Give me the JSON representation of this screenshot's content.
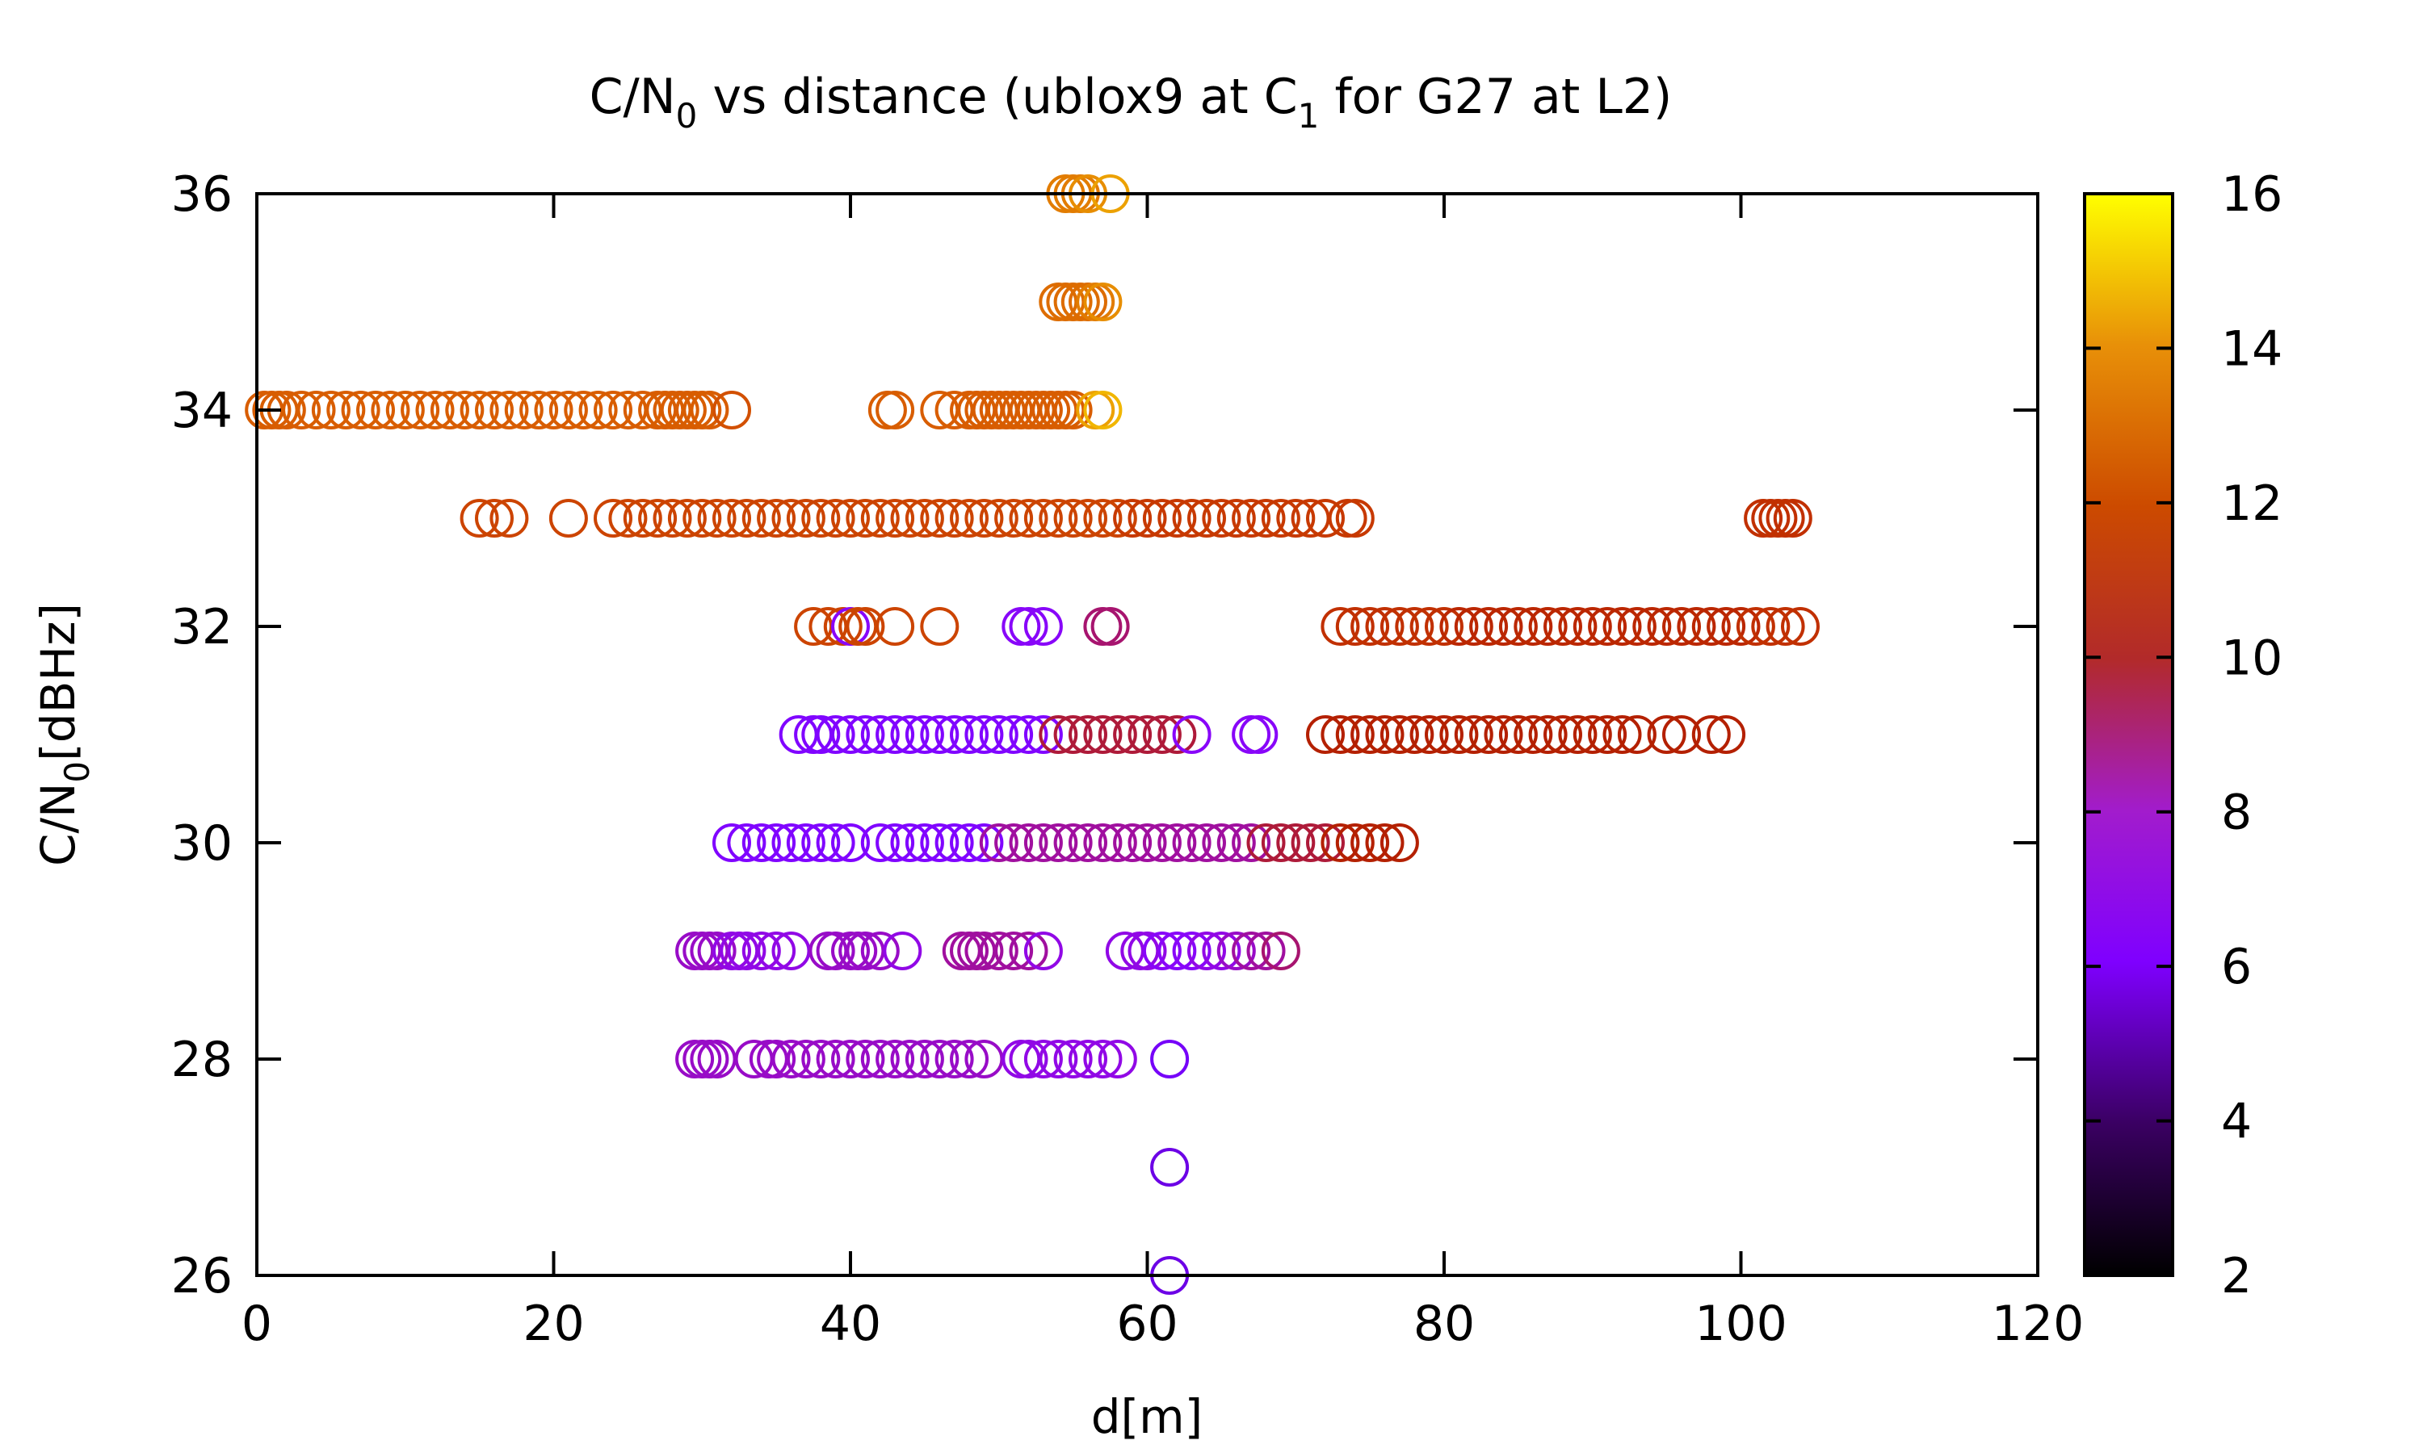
{
  "chart_data": {
    "type": "scatter",
    "title": {
      "pre": "C/N",
      "sub1": "0",
      "mid": " vs distance (ublox9 at C",
      "sub2": "1",
      "post": " for G27 at L2)"
    },
    "xlabel": "d[m]",
    "ylabel": {
      "pre": "C/N",
      "sub": "0",
      "post": "[dBHz]"
    },
    "xlim": [
      0,
      120
    ],
    "ylim": [
      26,
      36
    ],
    "xticks": [
      "0",
      "20",
      "40",
      "60",
      "80",
      "100",
      "120"
    ],
    "yticks": [
      "26",
      "28",
      "30",
      "32",
      "34",
      "36"
    ],
    "colorbar": {
      "range": [
        2,
        16
      ],
      "ticks": [
        "2",
        "4",
        "6",
        "8",
        "10",
        "12",
        "14",
        "16"
      ],
      "palette": "gnuplot (black-purple-red-orange-yellow)"
    },
    "marker": "open circle",
    "grid": false,
    "points": [
      {
        "y": 36,
        "x": [
          54.5,
          55,
          55.5,
          56,
          57.5
        ],
        "c": [
          13,
          13,
          13,
          13.5,
          14
        ]
      },
      {
        "y": 35,
        "x": [
          54,
          54.5,
          55,
          55.5,
          56,
          56.5,
          57
        ],
        "c": [
          12.5,
          12.5,
          12.5,
          12.5,
          12.5,
          13,
          13.5
        ]
      },
      {
        "y": 34,
        "x": [
          0.5,
          1,
          1.5,
          2,
          3,
          4,
          5,
          6,
          7,
          8,
          9,
          10,
          11,
          12,
          13,
          14,
          15,
          16,
          17,
          18,
          19,
          20,
          21,
          22,
          23,
          24,
          25,
          26,
          27,
          27.5,
          28,
          28.5,
          29,
          29.5,
          30,
          30.5,
          32,
          42.5,
          43,
          46,
          47,
          48,
          48.5,
          49,
          49.5,
          50,
          50.5,
          51,
          51.5,
          52,
          52.5,
          53,
          53.5,
          54,
          54.5,
          55,
          56.5,
          57
        ],
        "c": [
          12,
          12,
          12,
          12,
          12,
          12,
          12,
          12,
          12,
          12,
          12,
          12,
          12,
          12,
          12,
          12,
          12,
          12,
          12,
          12,
          12,
          12,
          12,
          12,
          12,
          12,
          12,
          12,
          12,
          12,
          12,
          12,
          12,
          12,
          12,
          12,
          11.5,
          12,
          12,
          12,
          12,
          12,
          12,
          12,
          12,
          12,
          12,
          12,
          12,
          12,
          12,
          12,
          12,
          12,
          12,
          12,
          14,
          14.5
        ]
      },
      {
        "y": 33,
        "x": [
          15,
          16,
          17,
          21,
          24,
          25,
          26,
          27,
          28,
          29,
          30,
          31,
          32,
          33,
          34,
          35,
          36,
          37,
          38,
          39,
          40,
          41,
          42,
          43,
          44,
          45,
          46,
          47,
          48,
          49,
          50,
          51,
          52,
          53,
          54,
          55,
          56,
          57,
          58,
          59,
          60,
          61,
          62,
          63,
          64,
          65,
          66,
          67,
          68,
          69,
          70,
          71,
          72,
          73.5,
          74,
          101.5,
          102,
          102.5,
          103,
          103.5
        ],
        "c": [
          11,
          11,
          11,
          11,
          11,
          11,
          11,
          11,
          11,
          11,
          11,
          11,
          11,
          11,
          11,
          11,
          11,
          11,
          11,
          11,
          11,
          11,
          11,
          11,
          11,
          11,
          11,
          11,
          11,
          11,
          11,
          11,
          11,
          11,
          11,
          11,
          11,
          11,
          11,
          10.5,
          10.5,
          10.5,
          10.5,
          10.5,
          10.5,
          10.5,
          10.5,
          10.5,
          10.5,
          10.5,
          10.5,
          10.5,
          10.5,
          10.5,
          10.5,
          10,
          10,
          10,
          10,
          10
        ]
      },
      {
        "y": 32,
        "x": [
          37.5,
          38.5,
          39.5,
          40,
          40.5,
          41,
          43,
          46,
          51.5,
          52,
          53,
          57,
          57.5,
          73,
          74,
          75,
          76,
          77,
          78,
          79,
          80,
          81,
          82,
          83,
          84,
          85,
          86,
          87,
          88,
          89,
          90,
          91,
          92,
          93,
          94,
          95,
          96,
          97,
          98,
          99,
          100,
          101,
          102,
          103,
          104
        ],
        "c": [
          11,
          11,
          11,
          6,
          11,
          11,
          11,
          11,
          6,
          6,
          6,
          8,
          8,
          10,
          10,
          10,
          10,
          10,
          10,
          10,
          10,
          9.5,
          9.5,
          9.5,
          9.5,
          9.5,
          9.5,
          9.5,
          9.5,
          9.5,
          9.5,
          9.5,
          9.5,
          9.5,
          9.5,
          9.5,
          9.5,
          9.5,
          9.5,
          9.5,
          9.5,
          10,
          10,
          10,
          10
        ]
      },
      {
        "y": 31,
        "x": [
          36.5,
          37.5,
          38,
          39,
          40,
          41,
          42,
          43,
          44,
          45,
          46,
          47,
          48,
          49,
          50,
          51,
          52,
          53,
          54,
          55,
          56,
          57,
          58,
          59,
          60,
          61,
          62,
          63,
          67,
          67.5,
          72,
          73,
          74,
          75,
          76,
          77,
          78,
          79,
          80,
          81,
          82,
          83,
          84,
          85,
          86,
          87,
          88,
          89,
          90,
          91,
          92,
          93,
          95,
          96,
          98,
          99
        ],
        "c": [
          5.5,
          5.5,
          5.5,
          5.5,
          5.5,
          5.5,
          5.5,
          5.5,
          5.5,
          5.5,
          5.5,
          5.5,
          5.5,
          5.5,
          5.5,
          5.5,
          5.5,
          5.5,
          8.5,
          8.5,
          8.5,
          8.5,
          8.5,
          8.5,
          8.5,
          8.5,
          8.5,
          6,
          6,
          6,
          9,
          9,
          9,
          9,
          9,
          9,
          9,
          9,
          9,
          9,
          9,
          9,
          9,
          9,
          9,
          9,
          9,
          9,
          9,
          9,
          9,
          9,
          9,
          9,
          9,
          9
        ]
      },
      {
        "y": 30,
        "x": [
          32,
          33,
          34,
          35,
          36,
          37,
          38,
          39,
          40,
          42,
          43,
          44,
          45,
          46,
          47,
          48,
          49,
          50,
          51,
          52,
          53,
          54,
          55,
          56,
          57,
          58,
          59,
          60,
          61,
          62,
          63,
          64,
          65,
          66,
          67,
          68,
          69,
          70,
          71,
          72,
          73,
          74,
          75,
          76,
          77
        ],
        "c": [
          5.5,
          5.5,
          5.5,
          5.5,
          5.5,
          5.5,
          5.5,
          5.5,
          5.5,
          5.5,
          5.5,
          5.5,
          5.5,
          5.5,
          5.5,
          5.5,
          5.5,
          7.5,
          7.5,
          7.5,
          7.5,
          7.5,
          7.5,
          7.5,
          7.5,
          7.5,
          7.5,
          7.5,
          7.5,
          7.5,
          7.5,
          7.5,
          7.5,
          7.5,
          7.5,
          8.5,
          8.5,
          8.5,
          8.5,
          8.5,
          9,
          9,
          9,
          9,
          9
        ]
      },
      {
        "y": 29,
        "x": [
          29.5,
          30,
          30.5,
          31,
          32,
          32.5,
          33,
          34,
          35,
          36,
          38.5,
          39,
          40,
          40.5,
          41,
          42,
          43.5,
          47.5,
          48,
          48.5,
          49,
          50,
          51,
          52,
          53,
          58.5,
          59.5,
          60,
          61,
          62,
          63,
          64,
          65,
          66,
          67,
          68,
          69
        ],
        "c": [
          7,
          7,
          7,
          7,
          6.5,
          6.5,
          6.5,
          6.5,
          6.5,
          6.5,
          7,
          7,
          7,
          7,
          7,
          7,
          6.5,
          7.5,
          7.5,
          7.5,
          7.5,
          7.5,
          7.5,
          7.5,
          6.5,
          6.5,
          6.5,
          6.5,
          6,
          6,
          6,
          6.5,
          6.5,
          7,
          7.5,
          7.5,
          8
        ]
      },
      {
        "y": 28,
        "x": [
          29.5,
          30,
          30.5,
          31,
          33.5,
          34.5,
          35,
          36,
          37,
          38,
          39,
          40,
          41,
          42,
          43,
          44,
          45,
          46,
          47,
          48,
          49,
          51.5,
          52,
          53,
          54,
          55,
          56,
          57,
          58,
          61.5
        ],
        "c": [
          7,
          7,
          7,
          7,
          7,
          7,
          7,
          7,
          7,
          7,
          7,
          7,
          7,
          7,
          7,
          7,
          7,
          7,
          7,
          7,
          7,
          6.5,
          6.5,
          6.5,
          6.5,
          6.5,
          6.5,
          6.5,
          6.5,
          5
        ]
      },
      {
        "y": 27,
        "x": [
          61.5
        ],
        "c": [
          4.5
        ]
      },
      {
        "y": 26,
        "x": [
          61.5
        ],
        "c": [
          4.5
        ]
      }
    ]
  }
}
